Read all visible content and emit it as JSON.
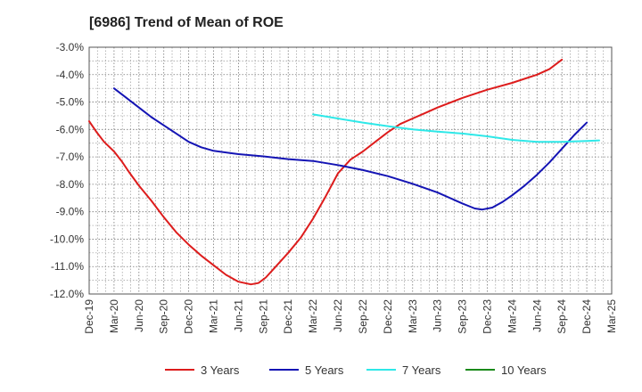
{
  "chart_data": {
    "type": "line",
    "title": "[6986]  Trend of Mean of ROE",
    "xlabel": "",
    "ylabel": "",
    "x_ticks": [
      "Dec-19",
      "Mar-20",
      "Jun-20",
      "Sep-20",
      "Dec-20",
      "Mar-21",
      "Jun-21",
      "Sep-21",
      "Dec-21",
      "Mar-22",
      "Jun-22",
      "Sep-22",
      "Dec-22",
      "Mar-23",
      "Jun-23",
      "Sep-23",
      "Dec-23",
      "Mar-24",
      "Jun-24",
      "Sep-24",
      "Dec-24",
      "Mar-25"
    ],
    "y_ticks": [
      "-3.0%",
      "-4.0%",
      "-5.0%",
      "-6.0%",
      "-7.0%",
      "-8.0%",
      "-9.0%",
      "-10.0%",
      "-11.0%",
      "-12.0%"
    ],
    "y_tick_values": [
      -3,
      -4,
      -5,
      -6,
      -7,
      -8,
      -9,
      -10,
      -11,
      -12
    ],
    "ylim": [
      -12,
      -3
    ],
    "grid": true,
    "legend_position": "bottom",
    "series": [
      {
        "name": "3 Years",
        "color": "#dd1c1c",
        "points": [
          [
            0,
            -5.7
          ],
          [
            0.3,
            -6.1
          ],
          [
            0.6,
            -6.45
          ],
          [
            1,
            -6.8
          ],
          [
            1.3,
            -7.15
          ],
          [
            1.6,
            -7.55
          ],
          [
            2,
            -8.05
          ],
          [
            2.5,
            -8.6
          ],
          [
            3,
            -9.2
          ],
          [
            3.5,
            -9.75
          ],
          [
            4,
            -10.2
          ],
          [
            4.5,
            -10.6
          ],
          [
            5,
            -10.95
          ],
          [
            5.5,
            -11.3
          ],
          [
            6,
            -11.55
          ],
          [
            6.5,
            -11.65
          ],
          [
            6.8,
            -11.6
          ],
          [
            7.1,
            -11.4
          ],
          [
            7.5,
            -11.0
          ],
          [
            8,
            -10.5
          ],
          [
            8.5,
            -9.95
          ],
          [
            9,
            -9.25
          ],
          [
            9.5,
            -8.45
          ],
          [
            10,
            -7.6
          ],
          [
            10.5,
            -7.1
          ],
          [
            11,
            -6.8
          ],
          [
            11.5,
            -6.45
          ],
          [
            12,
            -6.1
          ],
          [
            12.5,
            -5.8
          ],
          [
            13,
            -5.6
          ],
          [
            13.5,
            -5.4
          ],
          [
            14,
            -5.2
          ],
          [
            15,
            -4.85
          ],
          [
            16,
            -4.55
          ],
          [
            17,
            -4.3
          ],
          [
            18,
            -4.0
          ],
          [
            18.5,
            -3.8
          ],
          [
            19,
            -3.45
          ]
        ]
      },
      {
        "name": "5 Years",
        "color": "#1414b4",
        "points": [
          [
            1,
            -4.5
          ],
          [
            1.5,
            -4.85
          ],
          [
            2,
            -5.2
          ],
          [
            2.5,
            -5.55
          ],
          [
            3,
            -5.85
          ],
          [
            3.5,
            -6.15
          ],
          [
            4,
            -6.45
          ],
          [
            4.5,
            -6.65
          ],
          [
            5,
            -6.78
          ],
          [
            6,
            -6.9
          ],
          [
            7,
            -6.98
          ],
          [
            8,
            -7.08
          ],
          [
            9,
            -7.15
          ],
          [
            10,
            -7.3
          ],
          [
            11,
            -7.48
          ],
          [
            12,
            -7.7
          ],
          [
            13,
            -7.98
          ],
          [
            14,
            -8.3
          ],
          [
            15,
            -8.7
          ],
          [
            15.5,
            -8.88
          ],
          [
            15.8,
            -8.92
          ],
          [
            16.2,
            -8.85
          ],
          [
            16.6,
            -8.65
          ],
          [
            17,
            -8.4
          ],
          [
            17.5,
            -8.05
          ],
          [
            18,
            -7.65
          ],
          [
            18.5,
            -7.2
          ],
          [
            19,
            -6.7
          ],
          [
            19.5,
            -6.2
          ],
          [
            20,
            -5.75
          ]
        ]
      },
      {
        "name": "7 Years",
        "color": "#2ee8e8",
        "points": [
          [
            9,
            -5.45
          ],
          [
            10,
            -5.6
          ],
          [
            11,
            -5.75
          ],
          [
            12,
            -5.88
          ],
          [
            13,
            -6.0
          ],
          [
            14,
            -6.08
          ],
          [
            15,
            -6.15
          ],
          [
            16,
            -6.25
          ],
          [
            17,
            -6.38
          ],
          [
            18,
            -6.45
          ],
          [
            19,
            -6.45
          ],
          [
            20,
            -6.42
          ],
          [
            20.5,
            -6.4
          ]
        ]
      },
      {
        "name": "10 Years",
        "color": "#1a8a1a",
        "points": []
      }
    ]
  }
}
